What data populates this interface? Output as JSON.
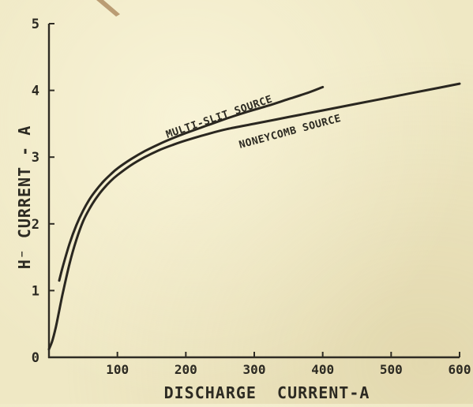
{
  "chart_data": {
    "type": "line",
    "xlabel": "DISCHARGE  CURRENT-A",
    "ylabel": "H⁻ CURRENT - A",
    "xlim": [
      0,
      600
    ],
    "ylim": [
      0,
      5
    ],
    "xticks": [
      100,
      200,
      300,
      400,
      500,
      600
    ],
    "xtick_labels": [
      "100",
      "200",
      "300",
      "400",
      "500",
      "600"
    ],
    "yticks": [
      0,
      1,
      2,
      3,
      4,
      5
    ],
    "ytick_labels": [
      "0",
      "1",
      "2",
      "3",
      "4",
      "5"
    ],
    "grid": false,
    "series": [
      {
        "name": "MULTI-SLIT SOURCE",
        "x": [
          15,
          20,
          30,
          40,
          50,
          60,
          70,
          80,
          90,
          100,
          120,
          140,
          160,
          180,
          200,
          230,
          260,
          290,
          320,
          350,
          380,
          400
        ],
        "y": [
          1.15,
          1.35,
          1.7,
          1.98,
          2.2,
          2.38,
          2.52,
          2.64,
          2.74,
          2.83,
          2.97,
          3.09,
          3.19,
          3.28,
          3.36,
          3.47,
          3.58,
          3.68,
          3.77,
          3.87,
          3.97,
          4.05
        ]
      },
      {
        "name": "NONEYCOMB SOURCE",
        "x": [
          0,
          5,
          10,
          15,
          20,
          30,
          40,
          50,
          60,
          70,
          80,
          90,
          100,
          120,
          140,
          160,
          180,
          200,
          230,
          260,
          300,
          350,
          400,
          450,
          500,
          550,
          600
        ],
        "y": [
          0.12,
          0.25,
          0.45,
          0.7,
          0.95,
          1.4,
          1.76,
          2.04,
          2.24,
          2.4,
          2.53,
          2.64,
          2.73,
          2.88,
          3.0,
          3.1,
          3.18,
          3.25,
          3.34,
          3.42,
          3.5,
          3.6,
          3.7,
          3.8,
          3.9,
          4.0,
          4.1
        ]
      }
    ]
  }
}
